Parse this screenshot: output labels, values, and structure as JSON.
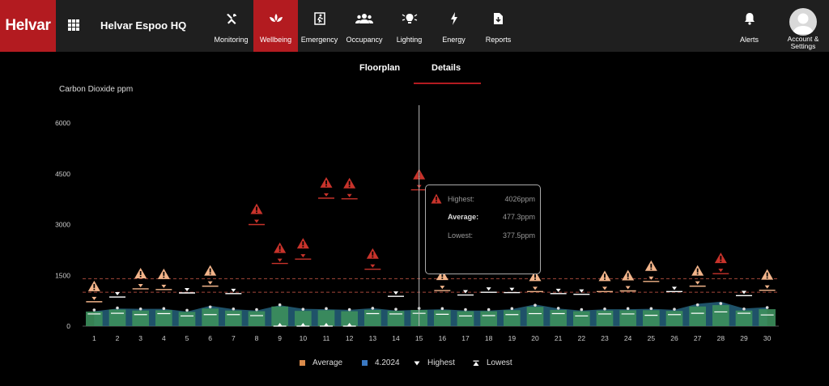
{
  "header": {
    "logo": "Helvar",
    "site_title": "Helvar Espoo HQ",
    "nav": [
      {
        "label": "Monitoring",
        "icon": "tools-icon",
        "active": false
      },
      {
        "label": "Wellbeing",
        "icon": "lotus-icon",
        "active": true
      },
      {
        "label": "Emergency",
        "icon": "emergency-exit-icon",
        "active": false
      },
      {
        "label": "Occupancy",
        "icon": "people-icon",
        "active": false
      },
      {
        "label": "Lighting",
        "icon": "lighting-icon",
        "active": false
      },
      {
        "label": "Energy",
        "icon": "bolt-icon",
        "active": false
      },
      {
        "label": "Reports",
        "icon": "report-icon",
        "active": false
      }
    ],
    "alerts_label": "Alerts",
    "account_label_1": "Account &",
    "account_label_2": "Settings"
  },
  "tabs": [
    {
      "label": "Floorplan",
      "active": false
    },
    {
      "label": "Details",
      "active": true
    }
  ],
  "chart_title": "Carbon Dioxide ppm",
  "tooltip": {
    "highest_label": "Highest:",
    "highest_value": "4026ppm",
    "average_label": "Average:",
    "average_value": "477.3ppm",
    "lowest_label": "Lowest:",
    "lowest_value": "377.5ppm"
  },
  "legend": {
    "average": "Average",
    "series": "4.2024",
    "highest": "Highest",
    "lowest": "Lowest"
  },
  "colors": {
    "brand_red": "#b31b20",
    "bar_green": "#3c8f5c",
    "bar_teal": "#2a6e8c",
    "warning_orange": "#f2b48a",
    "alarm_red": "#c8332b",
    "average_swatch": "#d98a4a",
    "series_swatch": "#3a78c2"
  },
  "chart_data": {
    "type": "bar",
    "ylim": [
      0,
      6000
    ],
    "yticks": [
      "0",
      "1500",
      "3000",
      "4500",
      "6000"
    ],
    "thresholds": [
      1000,
      1400
    ],
    "categories": [
      "1",
      "2",
      "3",
      "4",
      "5",
      "6",
      "7",
      "8",
      "9",
      "10",
      "11",
      "12",
      "13",
      "14",
      "15",
      "16",
      "17",
      "18",
      "19",
      "20",
      "21",
      "22",
      "23",
      "24",
      "25",
      "26",
      "27",
      "28",
      "29",
      "30"
    ],
    "series": [
      {
        "name": "Highest",
        "values": [
          720,
          860,
          1100,
          1080,
          980,
          1180,
          960,
          3000,
          1850,
          1980,
          3780,
          3760,
          1680,
          880,
          4026,
          1050,
          920,
          1000,
          990,
          1020,
          960,
          940,
          1020,
          1040,
          1320,
          1020,
          1180,
          1550,
          900,
          1060
        ]
      },
      {
        "name": "Average",
        "values": [
          430,
          490,
          460,
          470,
          420,
          520,
          460,
          440,
          580,
          450,
          470,
          440,
          480,
          450,
          477.3,
          470,
          440,
          440,
          470,
          570,
          480,
          440,
          460,
          470,
          470,
          450,
          580,
          620,
          460,
          500
        ]
      },
      {
        "name": "Lowest",
        "values": [
          360,
          380,
          340,
          370,
          300,
          340,
          340,
          310,
          0,
          0,
          0,
          0,
          370,
          360,
          377.5,
          350,
          300,
          310,
          340,
          370,
          370,
          300,
          360,
          360,
          320,
          340,
          380,
          420,
          380,
          330
        ]
      },
      {
        "name": "4.2024",
        "values": [
          440,
          520,
          510,
          510,
          430,
          600,
          500,
          460,
          620,
          510,
          500,
          480,
          530,
          460,
          480,
          500,
          460,
          460,
          500,
          640,
          520,
          460,
          500,
          500,
          510,
          480,
          660,
          720,
          520,
          560
        ]
      }
    ],
    "alert_levels": [
      "orange",
      "white",
      "orange",
      "orange",
      "white",
      "orange",
      "white",
      "red",
      "red",
      "red",
      "red",
      "red",
      "red",
      "white",
      "red",
      "orange",
      "white",
      "white",
      "white",
      "orange",
      "white",
      "white",
      "orange",
      "orange",
      "orange",
      "white",
      "orange",
      "red",
      "white",
      "orange"
    ]
  }
}
